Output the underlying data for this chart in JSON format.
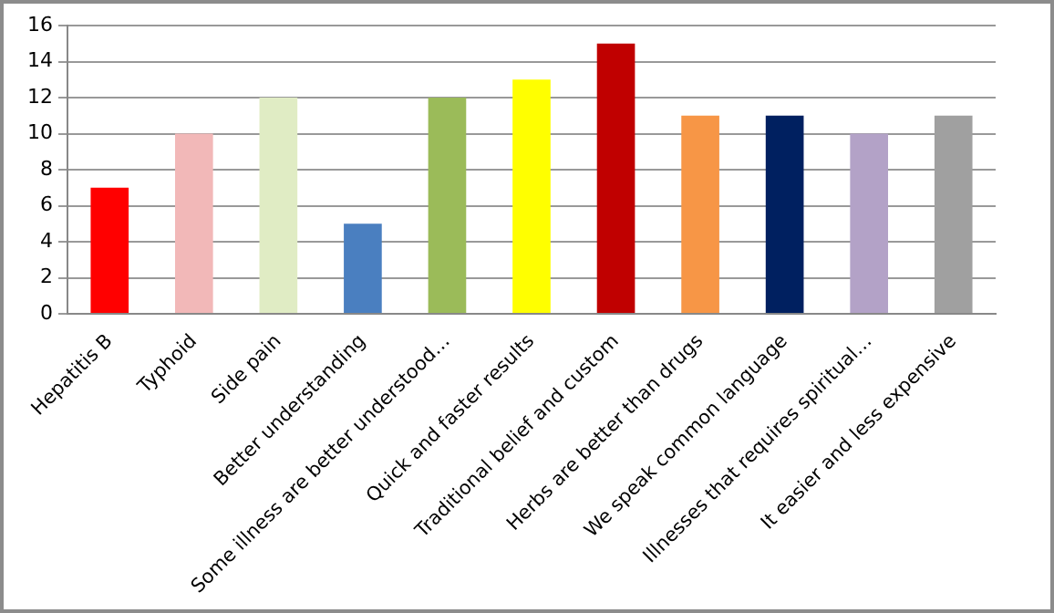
{
  "chart_data": {
    "type": "bar",
    "categories": [
      "Hepatitis B",
      "Typhoid",
      "Side pain",
      "Better understanding",
      "Some illness are better understood…",
      "Quick and faster results",
      "Traditional belief and custom",
      "Herbs are better than drugs",
      "We speak common language",
      "Illnesses that requires spiritual…",
      "It easier and less expensive"
    ],
    "values": [
      7,
      10,
      12,
      5,
      12,
      13,
      15,
      11,
      11,
      10,
      11
    ],
    "colors": [
      "#ff0000",
      "#f2b8b8",
      "#e0ecc4",
      "#4a7fc0",
      "#9bbb59",
      "#ffff00",
      "#c00000",
      "#f79646",
      "#002060",
      "#b3a2c7",
      "#a0a0a0"
    ],
    "ylim": [
      0,
      16
    ],
    "yticks": [
      0,
      2,
      4,
      6,
      8,
      10,
      12,
      14,
      16
    ],
    "grid": "y"
  }
}
